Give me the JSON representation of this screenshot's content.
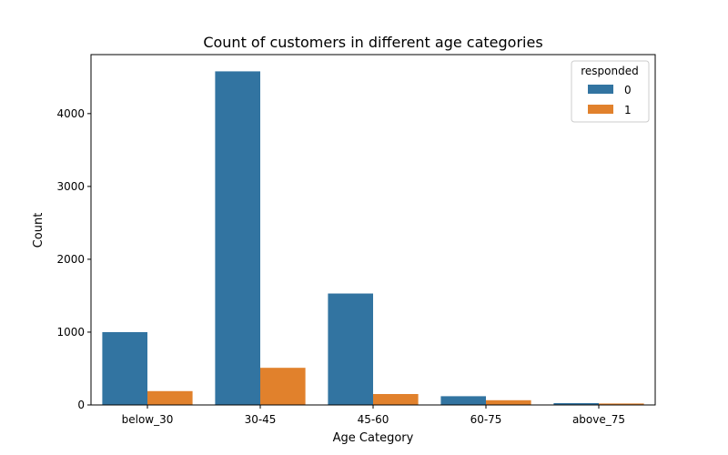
{
  "chart_data": {
    "type": "bar",
    "title": "Count of customers in different age categories",
    "xlabel": "Age Category",
    "ylabel": "Count",
    "categories": [
      "below_30",
      "30-45",
      "45-60",
      "60-75",
      "above_75"
    ],
    "series": [
      {
        "name": "0",
        "values": [
          1000,
          4580,
          1530,
          120,
          25
        ],
        "color": "#3274a1"
      },
      {
        "name": "1",
        "values": [
          190,
          510,
          150,
          65,
          20
        ],
        "color": "#e1812c"
      }
    ],
    "ylim": [
      0,
      4810
    ],
    "yticks": [
      0,
      1000,
      2000,
      3000,
      4000
    ],
    "grid": false,
    "legend": {
      "title": "responded",
      "placement": "top-right"
    }
  }
}
